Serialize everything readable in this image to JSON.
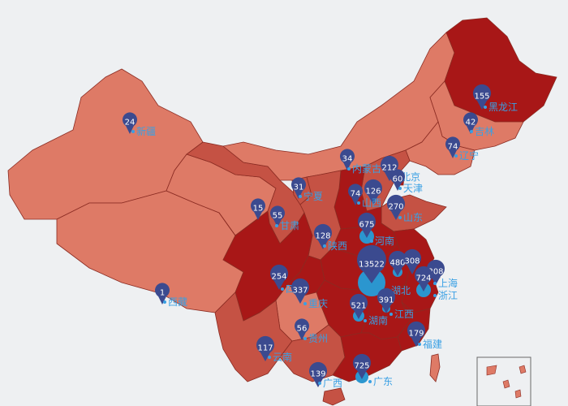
{
  "colors": {
    "background": "#eef0f2",
    "level_low": "#de7a66",
    "level_mid": "#c55244",
    "level_high": "#a81717",
    "border": "#8a2b22",
    "pin": "#3b4a8f",
    "bubble": "#2b96cf",
    "label": "#39a0e4"
  },
  "chart_data": {
    "type": "map",
    "regions": [
      {
        "id": "xinjiang",
        "label": "新疆",
        "value": "24"
      },
      {
        "id": "xizang",
        "label": "西藏",
        "value": "1"
      },
      {
        "id": "qinghai",
        "label": "",
        "value": "15"
      },
      {
        "id": "gansu",
        "label": "甘肃",
        "value": "55"
      },
      {
        "id": "ningxia",
        "label": "宁夏",
        "value": "31"
      },
      {
        "id": "neimenggu",
        "label": "内蒙古",
        "value": "34"
      },
      {
        "id": "heilongjiang",
        "label": "黑龙江",
        "value": "155"
      },
      {
        "id": "jilin",
        "label": "吉林",
        "value": "42"
      },
      {
        "id": "liaoning",
        "label": "辽宁",
        "value": "74"
      },
      {
        "id": "beijing",
        "label": "北京",
        "value": "212"
      },
      {
        "id": "tianjin",
        "label": "天津",
        "value": "60"
      },
      {
        "id": "hebei",
        "label": "",
        "value": "126"
      },
      {
        "id": "shanxi",
        "label": "山西",
        "value": "74"
      },
      {
        "id": "shandong",
        "label": "山东",
        "value": "270"
      },
      {
        "id": "shaanxi",
        "label": "陕西",
        "value": "128"
      },
      {
        "id": "henan",
        "label": "河南",
        "value": "675"
      },
      {
        "id": "hubei",
        "label": "湖北",
        "value": "13522"
      },
      {
        "id": "anhui",
        "label": "",
        "value": "480"
      },
      {
        "id": "jiangsu",
        "label": "",
        "value": "308"
      },
      {
        "id": "shanghai",
        "label": "上海",
        "value": "208"
      },
      {
        "id": "zhejiang",
        "label": "浙江",
        "value": "724"
      },
      {
        "id": "sichuan",
        "label": "四",
        "value": "254"
      },
      {
        "id": "chongqing",
        "label": "重庆",
        "value": "337"
      },
      {
        "id": "hunan",
        "label": "湖南",
        "value": "521"
      },
      {
        "id": "jiangxi",
        "label": "江西",
        "value": "391"
      },
      {
        "id": "fujian",
        "label": "福建",
        "value": "179"
      },
      {
        "id": "guizhou",
        "label": "贵州",
        "value": "56"
      },
      {
        "id": "yunnan",
        "label": "云南",
        "value": "117"
      },
      {
        "id": "guangxi",
        "label": "广西",
        "value": "139"
      },
      {
        "id": "guangdong",
        "label": "广东",
        "value": "725"
      },
      {
        "id": "hainan",
        "label": "",
        "value": ""
      }
    ]
  }
}
